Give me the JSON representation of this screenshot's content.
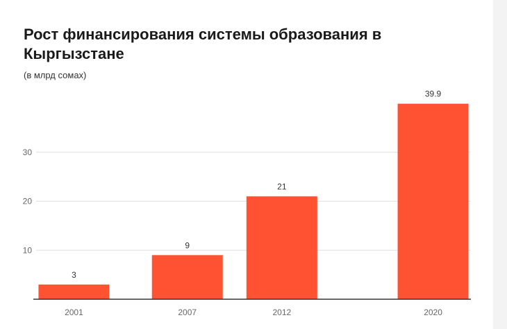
{
  "chart_data": {
    "type": "bar",
    "title": "Рост финансирования системы образования в Кыргызстане",
    "subtitle": "(в млрд сомах)",
    "xlabel": "",
    "ylabel": "",
    "categories": [
      "2001",
      "2007",
      "2012",
      "2020"
    ],
    "x_numeric": [
      2001,
      2007,
      2012,
      2020
    ],
    "values": [
      3,
      9,
      21,
      39.9
    ],
    "data_labels": [
      "3",
      "9",
      "21",
      "39.9"
    ],
    "y_ticks": [
      10,
      20,
      30
    ],
    "ylim": [
      0,
      40
    ],
    "grid": true,
    "legend": "none",
    "bar_color": "#ff5233",
    "axis_color": "#333333",
    "grid_color": "#e0e0e0"
  }
}
